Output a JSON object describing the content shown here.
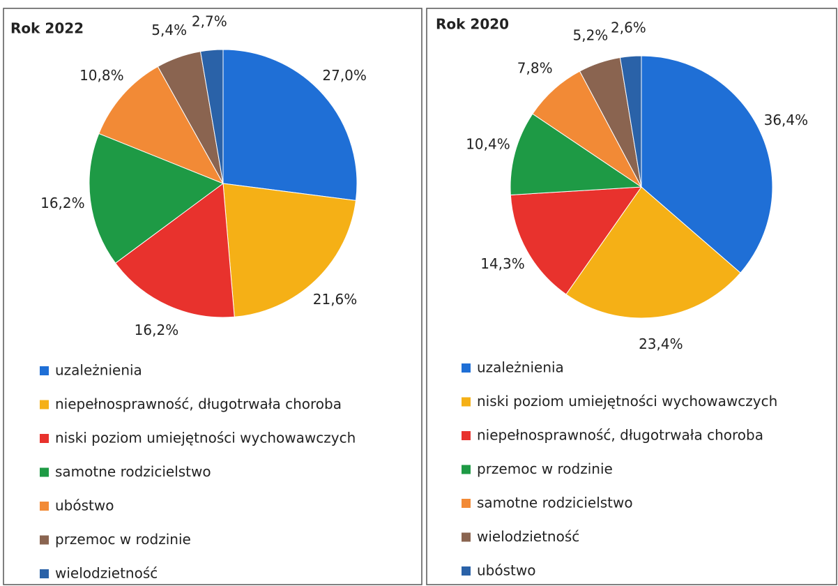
{
  "chart_data": [
    {
      "type": "pie",
      "title": "Rok 2022",
      "categories": [
        "uzależnienia",
        "niepełnosprawność, długotrwała choroba",
        "niski poziom umiejętności wychowawczych",
        "samotne rodzicielstwo",
        "ubóstwo",
        "przemoc w rodzinie",
        "wielodzietność"
      ],
      "values": [
        27.0,
        21.6,
        16.2,
        16.2,
        10.8,
        5.4,
        2.7
      ],
      "value_labels": [
        "27,0%",
        "21,6%",
        "16,2%",
        "16,2%",
        "10,8%",
        "5,4%",
        "2,7%"
      ],
      "colors": [
        "#1f6fd6",
        "#f5b016",
        "#e8322d",
        "#1e9a45",
        "#f28a36",
        "#8a6450",
        "#2a62a8"
      ]
    },
    {
      "type": "pie",
      "title": "Rok 2020",
      "categories": [
        "uzależnienia",
        "niski poziom umiejętności wychowawczych",
        "niepełnosprawność, długotrwała choroba",
        "przemoc w rodzinie",
        "samotne rodzicielstwo",
        "wielodzietność",
        "ubóstwo"
      ],
      "values": [
        36.4,
        23.4,
        14.3,
        10.4,
        7.8,
        5.2,
        2.6
      ],
      "value_labels": [
        "36,4%",
        "23,4%",
        "14,3%",
        "10,4%",
        "7,8%",
        "5,2%",
        "2,6%"
      ],
      "colors": [
        "#1f6fd6",
        "#f5b016",
        "#e8322d",
        "#1e9a45",
        "#f28a36",
        "#8a6450",
        "#2a62a8"
      ]
    }
  ]
}
